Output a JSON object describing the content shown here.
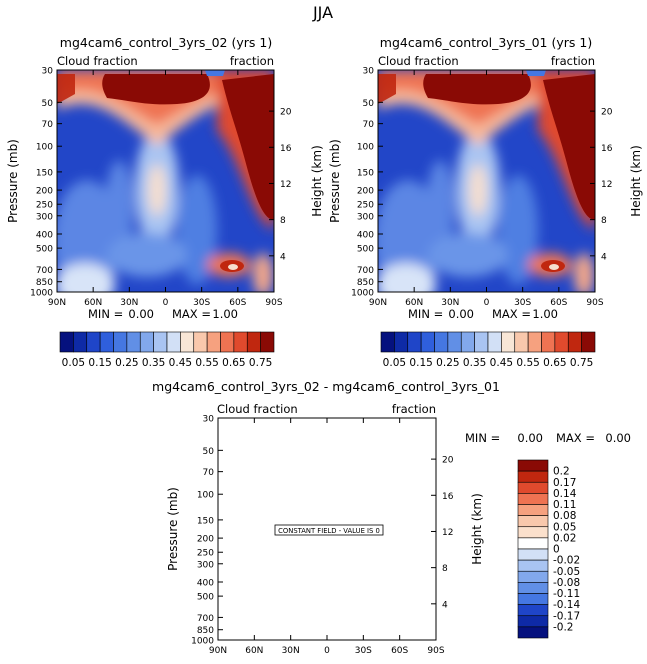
{
  "page_title": "JJA",
  "chart_data": [
    {
      "type": "heatmap",
      "title": "mg4cam6_control_3yrs_02 (yrs 1)",
      "left_label": "Cloud fraction",
      "right_label": "fraction",
      "xlabel": "",
      "ylabel": "Pressure (mb)",
      "y2label": "Height (km)",
      "x_ticks": [
        "90N",
        "60N",
        "30N",
        "0",
        "30S",
        "60S",
        "90S"
      ],
      "y_ticks": [
        "30",
        "50",
        "70",
        "100",
        "150",
        "200",
        "250",
        "300",
        "400",
        "500",
        "700",
        "850",
        "1000"
      ],
      "y_tick_values": [
        30,
        50,
        70,
        100,
        150,
        200,
        250,
        300,
        400,
        500,
        700,
        850,
        1000
      ],
      "y2_ticks": [
        "20",
        "16",
        "12",
        "8",
        "4"
      ],
      "y2_tick_values": [
        20,
        16,
        12,
        8,
        4
      ],
      "ylim": [
        1000,
        30
      ],
      "stats": {
        "min_label": "MIN =",
        "min": "0.00",
        "max_label": "MAX =",
        "max": "1.00"
      },
      "colorbar_labels": [
        "0.05",
        "0.15",
        "0.25",
        "0.35",
        "0.45",
        "0.55",
        "0.65",
        "0.75"
      ]
    },
    {
      "type": "heatmap",
      "title": "mg4cam6_control_3yrs_01 (yrs 1)",
      "left_label": "Cloud fraction",
      "right_label": "fraction",
      "xlabel": "",
      "ylabel": "Pressure (mb)",
      "y2label": "Height (km)",
      "x_ticks": [
        "90N",
        "60N",
        "30N",
        "0",
        "30S",
        "60S",
        "90S"
      ],
      "y_ticks": [
        "30",
        "50",
        "70",
        "100",
        "150",
        "200",
        "250",
        "300",
        "400",
        "500",
        "700",
        "850",
        "1000"
      ],
      "y_tick_values": [
        30,
        50,
        70,
        100,
        150,
        200,
        250,
        300,
        400,
        500,
        700,
        850,
        1000
      ],
      "y2_ticks": [
        "20",
        "16",
        "12",
        "8",
        "4"
      ],
      "y2_tick_values": [
        20,
        16,
        12,
        8,
        4
      ],
      "ylim": [
        1000,
        30
      ],
      "stats": {
        "min_label": "MIN =",
        "min": "0.00",
        "max_label": "MAX =",
        "max": "1.00"
      },
      "colorbar_labels": [
        "0.05",
        "0.15",
        "0.25",
        "0.35",
        "0.45",
        "0.55",
        "0.65",
        "0.75"
      ]
    },
    {
      "type": "heatmap",
      "title": "mg4cam6_control_3yrs_02 - mg4cam6_control_3yrs_01",
      "left_label": "Cloud fraction",
      "right_label": "fraction",
      "xlabel": "",
      "ylabel": "Pressure (mb)",
      "y2label": "Height (km)",
      "x_ticks": [
        "90N",
        "60N",
        "30N",
        "0",
        "30S",
        "60S",
        "90S"
      ],
      "y_ticks": [
        "30",
        "50",
        "70",
        "100",
        "150",
        "200",
        "250",
        "300",
        "400",
        "500",
        "700",
        "850",
        "1000"
      ],
      "y_tick_values": [
        30,
        50,
        70,
        100,
        150,
        200,
        250,
        300,
        400,
        500,
        700,
        850,
        1000
      ],
      "y2_ticks": [
        "20",
        "16",
        "12",
        "8",
        "4"
      ],
      "y2_tick_values": [
        20,
        16,
        12,
        8,
        4
      ],
      "ylim": [
        1000,
        30
      ],
      "stats": {
        "min_label": "MIN =",
        "min": "0.00",
        "max_label": "MAX =",
        "max": "0.00"
      },
      "annotation": "CONSTANT FIELD - VALUE IS 0",
      "colorbar_labels": [
        "0.2",
        "0.17",
        "0.14",
        "0.11",
        "0.08",
        "0.05",
        "0.02",
        "0",
        "-0.02",
        "-0.05",
        "-0.08",
        "-0.11",
        "-0.14",
        "-0.17",
        "-0.2"
      ]
    }
  ],
  "colors": {
    "seq_palette": [
      "#05117e",
      "#0e2aa6",
      "#1f45c8",
      "#2f5fdc",
      "#4577e2",
      "#618fe6",
      "#82a8ec",
      "#a9c4f2",
      "#d2e0f6",
      "#f8e6d6",
      "#f9c8ac",
      "#f6a17f",
      "#ef7352",
      "#e04a2d",
      "#c0270f",
      "#8a0a05"
    ],
    "div_palette": [
      "#8a0a05",
      "#c0270f",
      "#e04a2d",
      "#ef7352",
      "#f6a17f",
      "#f9c8ac",
      "#fbe0cc",
      "#ffffff",
      "#d2e0f6",
      "#a9c4f2",
      "#82a8ec",
      "#618fe6",
      "#4577e2",
      "#1f45c8",
      "#0e2aa6",
      "#05117e"
    ]
  }
}
